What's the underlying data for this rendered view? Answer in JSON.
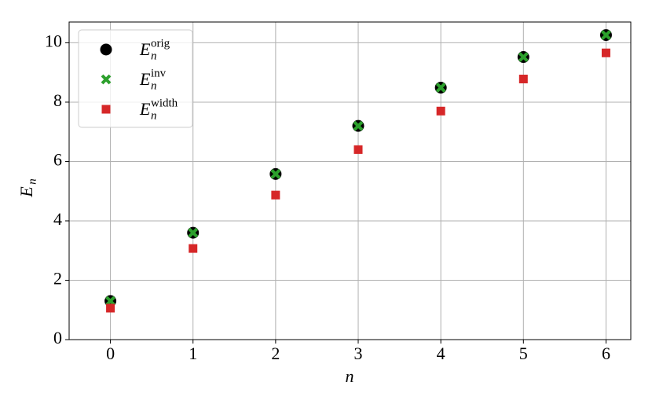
{
  "chart_data": {
    "type": "scatter",
    "xlabel": "n",
    "ylabel": "E",
    "ylabel_sub": "n",
    "x": [
      0,
      1,
      2,
      3,
      4,
      5,
      6
    ],
    "series": [
      {
        "name": "E",
        "name_sub": "n",
        "name_sup": "orig",
        "color": "#000000",
        "marker": "circle",
        "values": [
          1.3,
          3.6,
          5.58,
          7.2,
          8.49,
          9.52,
          10.26
        ]
      },
      {
        "name": "E",
        "name_sub": "n",
        "name_sup": "inv",
        "color": "#2ca02c",
        "marker": "x",
        "values": [
          1.3,
          3.6,
          5.58,
          7.2,
          8.49,
          9.52,
          10.26
        ]
      },
      {
        "name": "E",
        "name_sub": "n",
        "name_sup": "width",
        "color": "#d62728",
        "marker": "square",
        "values": [
          1.06,
          3.07,
          4.87,
          6.4,
          7.7,
          8.78,
          9.66
        ]
      }
    ],
    "xlim": [
      -0.5,
      6.3
    ],
    "ylim": [
      0,
      10.7
    ],
    "xticks": [
      0,
      1,
      2,
      3,
      4,
      5,
      6
    ],
    "yticks": [
      0,
      2,
      4,
      6,
      8,
      10
    ],
    "grid": true,
    "legend": "upper-left"
  }
}
